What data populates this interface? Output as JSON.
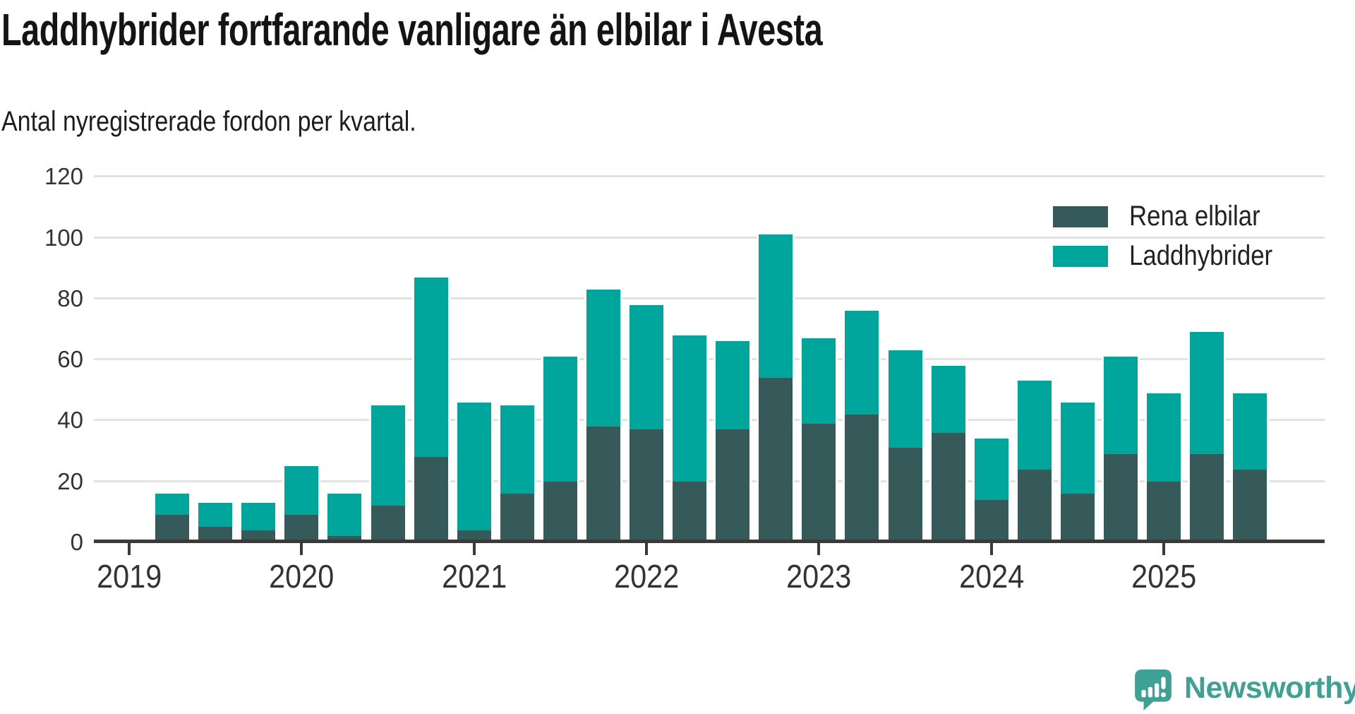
{
  "chart_data": {
    "type": "bar",
    "stacked": true,
    "title": "Laddhybrider fortfarande vanligare än elbilar i Avesta",
    "subtitle": "Antal nyregistrerade fordon per kvartal.",
    "categories": [
      "2019 Q2",
      "2019 Q3",
      "2019 Q4",
      "2020 Q1",
      "2020 Q2",
      "2020 Q3",
      "2020 Q4",
      "2021 Q1",
      "2021 Q2",
      "2021 Q3",
      "2021 Q4",
      "2022 Q1",
      "2022 Q2",
      "2022 Q3",
      "2022 Q4",
      "2023 Q1",
      "2023 Q2",
      "2023 Q3",
      "2023 Q4",
      "2024 Q1",
      "2024 Q2",
      "2024 Q3",
      "2024 Q4",
      "2025 Q1",
      "2025 Q2",
      "2025 Q3"
    ],
    "series": [
      {
        "name": "Rena elbilar",
        "color": "#36595a",
        "values": [
          9,
          5,
          4,
          9,
          2,
          12,
          28,
          4,
          16,
          20,
          38,
          37,
          20,
          37,
          54,
          39,
          42,
          31,
          36,
          14,
          24,
          16,
          29,
          20,
          29,
          24
        ]
      },
      {
        "name": "Laddhybrider",
        "color": "#00a69c",
        "values": [
          7,
          8,
          9,
          16,
          14,
          33,
          59,
          42,
          29,
          41,
          45,
          41,
          48,
          29,
          47,
          28,
          34,
          32,
          22,
          20,
          29,
          30,
          32,
          29,
          40,
          25
        ]
      }
    ],
    "totals": [
      16,
      13,
      13,
      25,
      16,
      45,
      87,
      46,
      45,
      61,
      83,
      78,
      68,
      66,
      101,
      67,
      76,
      63,
      58,
      34,
      53,
      46,
      61,
      49,
      69,
      49
    ],
    "x_tick_labels": [
      "2019",
      "2020",
      "2021",
      "2022",
      "2023",
      "2024",
      "2025"
    ],
    "x_start_quarter_offset": 1,
    "y_ticks": [
      0,
      20,
      40,
      60,
      80,
      100,
      120
    ],
    "ylim": [
      0,
      120
    ],
    "grid": true,
    "legend_position": "top-right",
    "colors": {
      "axis": "#3a3a3a",
      "gridline": "#e2e2e2",
      "tick_label": "#333333",
      "title_text": "#141414"
    }
  },
  "branding": {
    "logo_text": "Newsworthy",
    "logo_color": "#3fa096"
  }
}
